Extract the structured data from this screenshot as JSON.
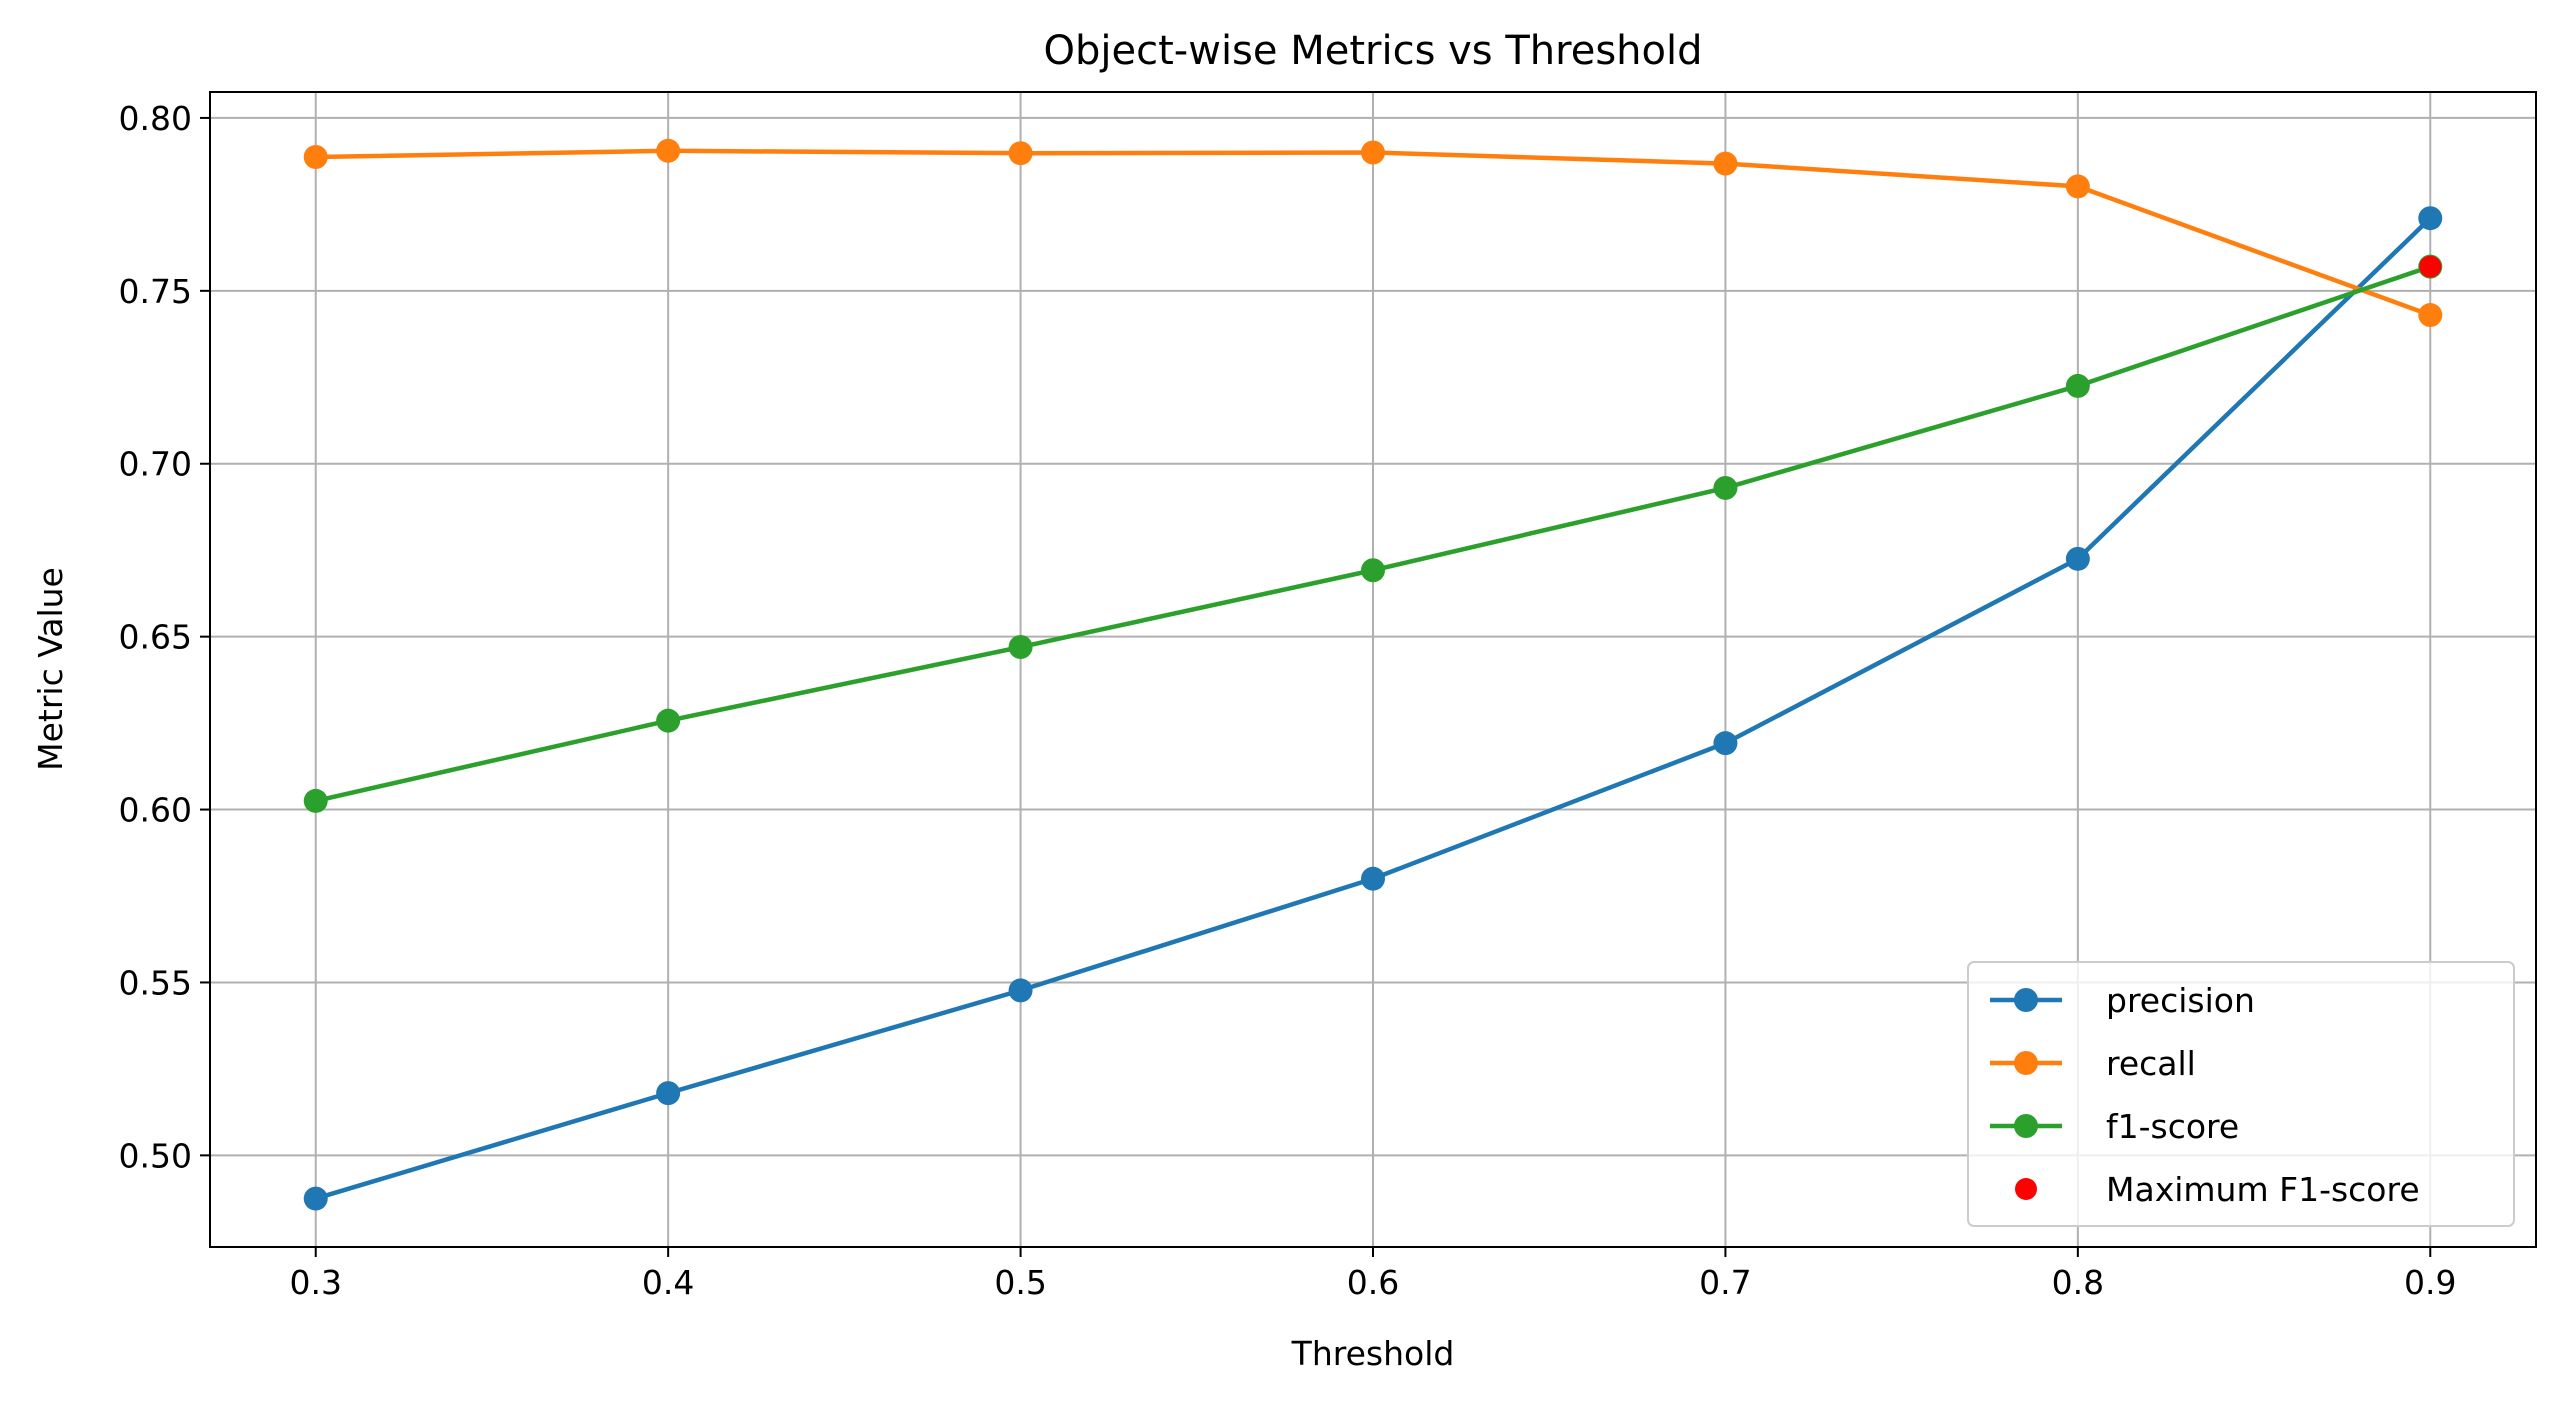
{
  "chart_data": {
    "type": "line",
    "title": "Object-wise Metrics vs Threshold",
    "xlabel": "Threshold",
    "ylabel": "Metric Value",
    "x": [
      0.3,
      0.4,
      0.5,
      0.6,
      0.7,
      0.8,
      0.9
    ],
    "xlim": [
      0.27,
      0.93
    ],
    "ylim": [
      0.4735,
      0.8075
    ],
    "xticks": [
      "0.3",
      "0.4",
      "0.5",
      "0.6",
      "0.7",
      "0.8",
      "0.9"
    ],
    "yticks": [
      "0.50",
      "0.55",
      "0.60",
      "0.65",
      "0.70",
      "0.75",
      "0.80"
    ],
    "grid": true,
    "legend_position": "lower right",
    "series": [
      {
        "name": "precision",
        "color": "#1f77b4",
        "values": [
          0.4875,
          0.518,
          0.5477,
          0.58,
          0.6192,
          0.6725,
          0.771
        ]
      },
      {
        "name": "recall",
        "color": "#ff7f0e",
        "values": [
          0.7887,
          0.7905,
          0.7898,
          0.79,
          0.7868,
          0.7802,
          0.743
        ]
      },
      {
        "name": "f1-score",
        "color": "#2ca02c",
        "values": [
          0.6025,
          0.6257,
          0.647,
          0.6692,
          0.693,
          0.7225,
          0.757
        ]
      }
    ],
    "highlight": {
      "name": "Maximum F1-score",
      "color": "#ff0000",
      "x": 0.9,
      "y": 0.757
    }
  }
}
